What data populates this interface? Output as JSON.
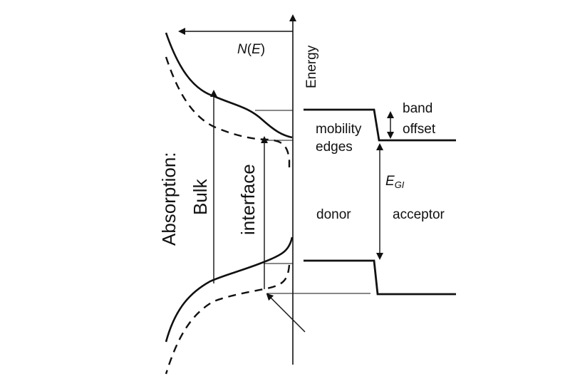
{
  "labels": {
    "density_prefix": "N",
    "density_paren_open": "(",
    "density_var": "E",
    "density_paren_close": ")",
    "energy_axis": "Energy",
    "mobility": "mobility",
    "edges": "edges",
    "band": "band",
    "offset": "offset",
    "gap_symbol": "E",
    "gap_subscript": "GI",
    "donor": "donor",
    "acceptor": "acceptor",
    "absorption": "Absorption:",
    "bulk": "Bulk",
    "interface": "interface"
  },
  "colors": {
    "ink": "#111111",
    "background": "#ffffff"
  }
}
